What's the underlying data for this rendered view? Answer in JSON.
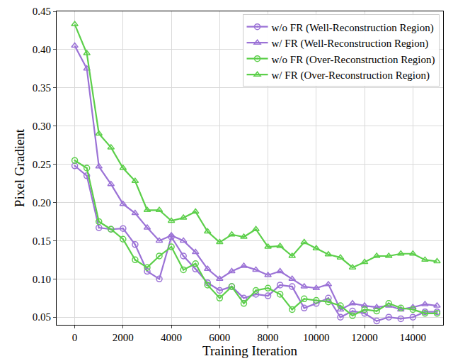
{
  "chart_data": {
    "type": "line",
    "x_label": "Training Iteration",
    "y_label": "Pixel Gradient",
    "x": [
      0,
      500,
      1000,
      1500,
      2000,
      2500,
      3000,
      3500,
      4000,
      4500,
      5000,
      5500,
      6000,
      6500,
      7000,
      7500,
      8000,
      8500,
      9000,
      9500,
      10000,
      10500,
      11000,
      11500,
      12000,
      12500,
      13000,
      13500,
      14000,
      14500,
      15000
    ],
    "series": [
      {
        "name": "w/o FR (Well-Reconstruction Region)",
        "color": "#9b72d6",
        "marker": "circle",
        "values": [
          0.248,
          0.235,
          0.167,
          0.165,
          0.166,
          0.145,
          0.11,
          0.1,
          0.155,
          0.13,
          0.113,
          0.095,
          0.085,
          0.09,
          0.075,
          0.08,
          0.078,
          0.092,
          0.09,
          0.062,
          0.068,
          0.075,
          0.05,
          0.058,
          0.055,
          0.045,
          0.05,
          0.048,
          0.05,
          0.057,
          0.057
        ]
      },
      {
        "name": "w/ FR (Well-Reconstruction Region)",
        "color": "#9b72d6",
        "marker": "triangle",
        "values": [
          0.405,
          0.375,
          0.247,
          0.224,
          0.198,
          0.186,
          0.167,
          0.15,
          0.157,
          0.15,
          0.135,
          0.113,
          0.1,
          0.11,
          0.117,
          0.112,
          0.105,
          0.11,
          0.1,
          0.09,
          0.088,
          0.093,
          0.06,
          0.068,
          0.065,
          0.063,
          0.065,
          0.06,
          0.063,
          0.067,
          0.065
        ]
      },
      {
        "name": "w/o FR (Over-Reconstruction Region)",
        "color": "#5ccf4a",
        "marker": "circle",
        "values": [
          0.255,
          0.245,
          0.175,
          0.165,
          0.152,
          0.125,
          0.115,
          0.13,
          0.142,
          0.112,
          0.12,
          0.092,
          0.075,
          0.09,
          0.068,
          0.085,
          0.088,
          0.08,
          0.06,
          0.074,
          0.072,
          0.07,
          0.065,
          0.052,
          0.06,
          0.058,
          0.068,
          0.062,
          0.06,
          0.055,
          0.055
        ]
      },
      {
        "name": "w/ FR (Over-Reconstruction Region)",
        "color": "#5ccf4a",
        "marker": "triangle",
        "values": [
          0.433,
          0.395,
          0.29,
          0.272,
          0.245,
          0.228,
          0.19,
          0.19,
          0.176,
          0.18,
          0.188,
          0.162,
          0.148,
          0.158,
          0.155,
          0.165,
          0.142,
          0.143,
          0.13,
          0.148,
          0.14,
          0.132,
          0.128,
          0.115,
          0.122,
          0.13,
          0.13,
          0.133,
          0.133,
          0.125,
          0.123
        ]
      }
    ],
    "xlim": [
      -750,
      15250
    ],
    "xticks": [
      0,
      2000,
      4000,
      6000,
      8000,
      10000,
      12000,
      14000
    ],
    "ylim": [
      0.04,
      0.45
    ],
    "yticks": [
      0.05,
      {
        "value": 0.1,
        "label": "0.10"
      },
      0.15,
      {
        "value": 0.2,
        "label": "0.20"
      },
      0.25,
      {
        "value": 0.3,
        "label": "0.30"
      },
      0.35,
      {
        "value": 0.4,
        "label": "0.40"
      },
      0.45
    ],
    "grid": true,
    "legend": "top-right"
  }
}
